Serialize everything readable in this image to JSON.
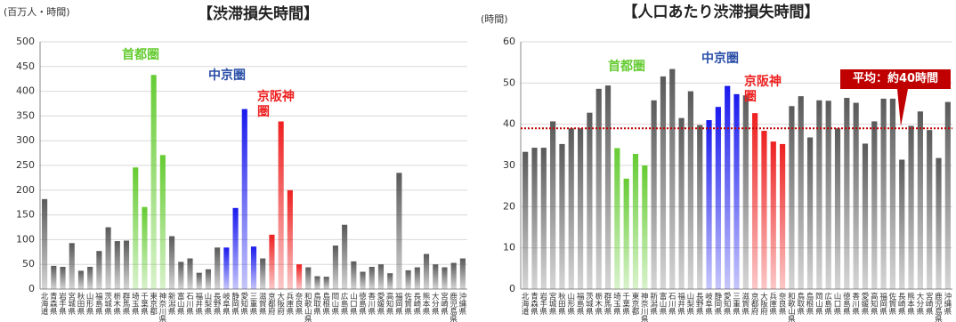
{
  "chart_data": [
    {
      "type": "bar",
      "title": "【渋滞損失時間】",
      "y_label": "(百万人・時間)",
      "categories": [
        "北海道",
        "青森県",
        "岩手県",
        "宮城県",
        "秋田県",
        "山形県",
        "福島県",
        "茨城県",
        "栃木県",
        "群馬県",
        "埼玉県",
        "千葉県",
        "東京都",
        "神奈川県",
        "新潟県",
        "富山県",
        "石川県",
        "福井県",
        "山梨県",
        "長野県",
        "岐阜県",
        "静岡県",
        "愛知県",
        "三重県",
        "滋賀県",
        "京都府",
        "大阪府",
        "兵庫県",
        "奈良県",
        "和歌山県",
        "鳥取県",
        "島根県",
        "岡山県",
        "広島県",
        "山口県",
        "徳島県",
        "香川県",
        "愛媛県",
        "高知県",
        "福岡県",
        "佐賀県",
        "長崎県",
        "熊本県",
        "大分県",
        "宮崎県",
        "鹿児島県",
        "沖縄県"
      ],
      "values": [
        182,
        47,
        45,
        93,
        37,
        45,
        77,
        125,
        97,
        98,
        246,
        166,
        433,
        271,
        107,
        55,
        62,
        33,
        40,
        84,
        84,
        164,
        364,
        86,
        62,
        110,
        339,
        200,
        50,
        44,
        26,
        25,
        88,
        130,
        56,
        35,
        45,
        50,
        32,
        235,
        38,
        44,
        71,
        50,
        44,
        53,
        62
      ],
      "colors": [
        "#5a5a5a",
        "#5a5a5a",
        "#5a5a5a",
        "#5a5a5a",
        "#5a5a5a",
        "#5a5a5a",
        "#5a5a5a",
        "#5a5a5a",
        "#5a5a5a",
        "#5a5a5a",
        "#66cc33",
        "#66cc33",
        "#66cc33",
        "#66cc33",
        "#5a5a5a",
        "#5a5a5a",
        "#5a5a5a",
        "#5a5a5a",
        "#5a5a5a",
        "#5a5a5a",
        "#1a1aee",
        "#1a1aee",
        "#1a1aee",
        "#1a1aee",
        "#5a5a5a",
        "#ee2020",
        "#ee2020",
        "#ee2020",
        "#ee2020",
        "#5a5a5a",
        "#5a5a5a",
        "#5a5a5a",
        "#5a5a5a",
        "#5a5a5a",
        "#5a5a5a",
        "#5a5a5a",
        "#5a5a5a",
        "#5a5a5a",
        "#5a5a5a",
        "#5a5a5a",
        "#5a5a5a",
        "#5a5a5a",
        "#5a5a5a",
        "#5a5a5a",
        "#5a5a5a",
        "#5a5a5a",
        "#5a5a5a"
      ],
      "ylim": [
        0,
        500
      ],
      "yticks": [
        0,
        50,
        100,
        150,
        200,
        250,
        300,
        350,
        400,
        450,
        500
      ],
      "grid": true,
      "annotations": [
        {
          "text": "首都圏",
          "color": "#66cc33"
        },
        {
          "text": "中京圏",
          "color": "#2a4fa8"
        },
        {
          "text": "京阪神圏",
          "color": "#ee2020"
        }
      ]
    },
    {
      "type": "bar",
      "title": "【人口あたり渋滞損失時間】",
      "y_label": "(時間)",
      "categories": [
        "北海道",
        "青森県",
        "岩手県",
        "宮城県",
        "秋田県",
        "山形県",
        "福島県",
        "茨城県",
        "栃木県",
        "群馬県",
        "埼玉県",
        "千葉県",
        "東京都",
        "神奈川県",
        "新潟県",
        "富山県",
        "石川県",
        "福井県",
        "山梨県",
        "長野県",
        "岐阜県",
        "静岡県",
        "愛知県",
        "三重県",
        "滋賀県",
        "京都府",
        "大阪府",
        "兵庫県",
        "奈良県",
        "和歌山県",
        "鳥取県",
        "島根県",
        "岡山県",
        "広島県",
        "山口県",
        "徳島県",
        "香川県",
        "愛媛県",
        "高知県",
        "福岡県",
        "佐賀県",
        "長崎県",
        "熊本県",
        "大分県",
        "宮崎県",
        "鹿児島県",
        "沖縄県"
      ],
      "values": [
        33.3,
        34.3,
        34.3,
        40.7,
        35.2,
        39,
        39,
        42.8,
        48.6,
        49.4,
        34.2,
        26.8,
        32.8,
        30,
        45.8,
        51.6,
        53.4,
        41.5,
        48,
        39.8,
        41,
        44.2,
        49.3,
        47.3,
        47,
        42.7,
        38.4,
        35.8,
        35.2,
        44.4,
        46.8,
        36.8,
        45.8,
        45.7,
        39,
        46.4,
        45.2,
        35.3,
        40.7,
        46.2,
        46.2,
        31.4,
        39.6,
        43.1,
        38.6,
        31.8,
        45.4
      ],
      "colors": [
        "#5a5a5a",
        "#5a5a5a",
        "#5a5a5a",
        "#5a5a5a",
        "#5a5a5a",
        "#5a5a5a",
        "#5a5a5a",
        "#5a5a5a",
        "#5a5a5a",
        "#5a5a5a",
        "#66cc33",
        "#66cc33",
        "#66cc33",
        "#66cc33",
        "#5a5a5a",
        "#5a5a5a",
        "#5a5a5a",
        "#5a5a5a",
        "#5a5a5a",
        "#5a5a5a",
        "#1a1aee",
        "#1a1aee",
        "#1a1aee",
        "#1a1aee",
        "#5a5a5a",
        "#ee2020",
        "#ee2020",
        "#ee2020",
        "#ee2020",
        "#5a5a5a",
        "#5a5a5a",
        "#5a5a5a",
        "#5a5a5a",
        "#5a5a5a",
        "#5a5a5a",
        "#5a5a5a",
        "#5a5a5a",
        "#5a5a5a",
        "#5a5a5a",
        "#5a5a5a",
        "#5a5a5a",
        "#5a5a5a",
        "#5a5a5a",
        "#5a5a5a",
        "#5a5a5a",
        "#5a5a5a",
        "#5a5a5a"
      ],
      "ylim": [
        0,
        60
      ],
      "yticks": [
        0,
        10,
        20,
        30,
        40,
        50,
        60
      ],
      "grid": true,
      "average": {
        "label": "平均：約40時間",
        "value": 39,
        "color": "#c00000"
      },
      "annotations": [
        {
          "text": "首都圏",
          "color": "#66cc33"
        },
        {
          "text": "中京圏",
          "color": "#2a4fa8"
        },
        {
          "text": "京阪神圏",
          "color": "#ee2020"
        }
      ]
    }
  ]
}
